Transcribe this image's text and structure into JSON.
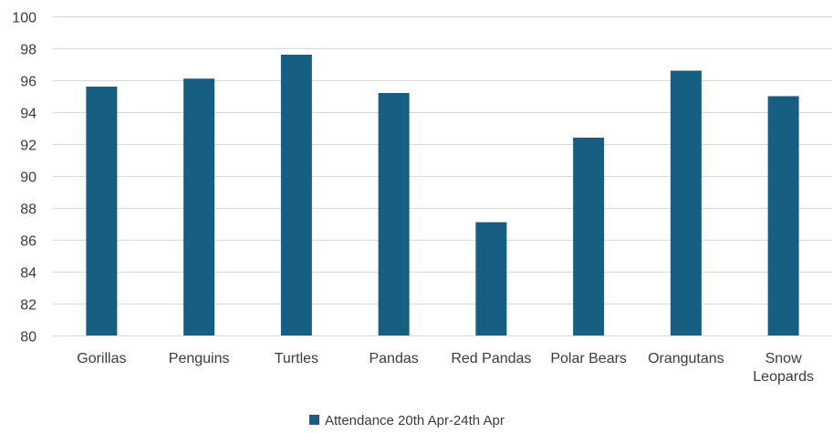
{
  "chart_data": {
    "type": "bar",
    "title": "",
    "xlabel": "",
    "ylabel": "",
    "categories": [
      [
        "Gorillas"
      ],
      [
        "Penguins"
      ],
      [
        "Turtles"
      ],
      [
        "Pandas"
      ],
      [
        "Red Pandas"
      ],
      [
        "Polar Bears"
      ],
      [
        "Orangutans"
      ],
      [
        "Snow",
        "Leopards"
      ]
    ],
    "series": [
      {
        "name": "Attendance 20th Apr-24th Apr",
        "color": "#175f82",
        "values": [
          95.6,
          96.1,
          97.6,
          95.2,
          87.1,
          92.4,
          96.6,
          95.0
        ]
      }
    ],
    "ylim": [
      80,
      100
    ],
    "yticks": [
      80,
      82,
      84,
      86,
      88,
      90,
      92,
      94,
      96,
      98,
      100
    ],
    "grid": true,
    "grid_color": "#d9d9d9",
    "legend_position": "bottom"
  }
}
